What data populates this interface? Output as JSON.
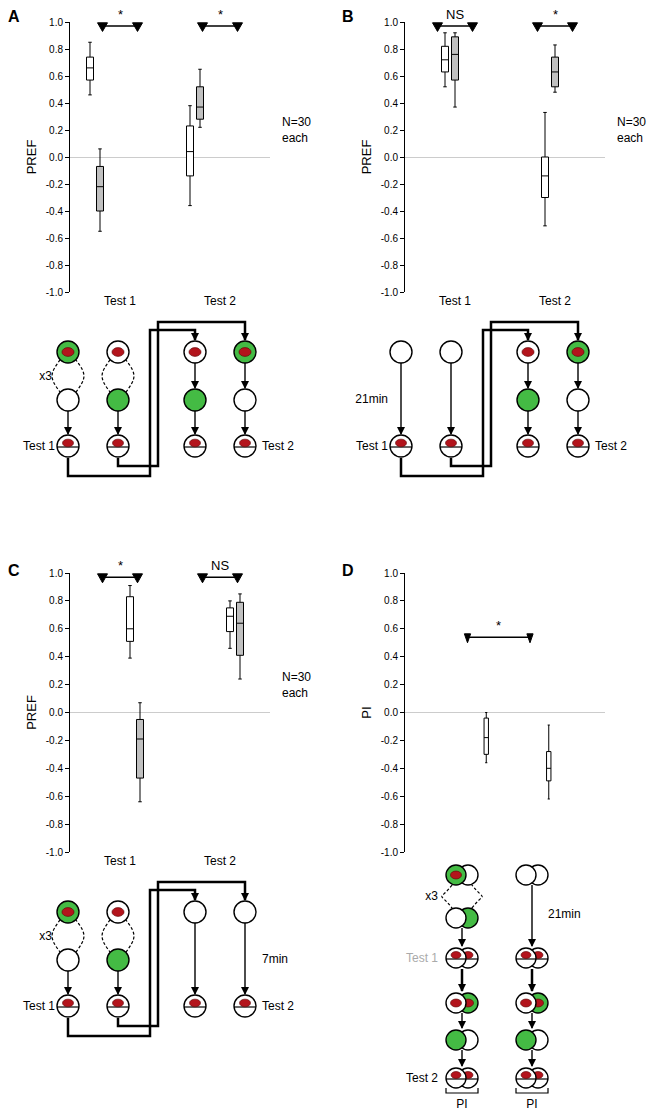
{
  "chart_data": [
    {
      "panel": "A",
      "type": "box",
      "y_label": "PREF",
      "categories": [
        "Test 1",
        "Test 2"
      ],
      "ylim": [
        -1,
        1
      ],
      "yticks": [
        {
          "value": -1,
          "label": "-1.0"
        },
        -0.8,
        -0.6,
        -0.4,
        -0.2,
        {
          "value": 0,
          "label": "0.0"
        },
        0.2,
        0.4,
        0.6,
        0.8,
        {
          "value": 1,
          "label": "1.0"
        }
      ],
      "series": [
        {
          "color": "#ffffff",
          "boxes": [
            {
              "min": 0.46,
              "q1": 0.57,
              "median": 0.66,
              "q3": 0.74,
              "max": 0.85
            },
            {
              "min": -0.36,
              "q1": -0.14,
              "median": 0.04,
              "q3": 0.23,
              "max": 0.38
            }
          ]
        },
        {
          "color": "#c0c0c0",
          "boxes": [
            {
              "min": -0.55,
              "q1": -0.4,
              "median": -0.22,
              "q3": -0.07,
              "max": 0.06
            },
            {
              "min": 0.22,
              "q1": 0.28,
              "median": 0.37,
              "q3": 0.52,
              "max": 0.65
            }
          ]
        }
      ],
      "significance": [
        {
          "categories": [
            0
          ],
          "text": "*"
        },
        {
          "categories": [
            1
          ],
          "text": "*"
        }
      ],
      "sample_size": [
        "N=30",
        "each"
      ]
    },
    {
      "panel": "B",
      "type": "box",
      "y_label": "PREF",
      "categories": [
        "Test 1",
        "Test 2"
      ],
      "ylim": [
        -1,
        1
      ],
      "yticks": [
        {
          "value": -1,
          "label": "-1.0"
        },
        -0.8,
        -0.6,
        -0.4,
        -0.2,
        {
          "value": 0,
          "label": "0.0"
        },
        0.2,
        0.4,
        0.6,
        0.8,
        {
          "value": 1,
          "label": "1.0"
        }
      ],
      "series": [
        {
          "color": "#ffffff",
          "boxes": [
            {
              "min": 0.52,
              "q1": 0.63,
              "median": 0.72,
              "q3": 0.82,
              "max": 0.92
            },
            {
              "min": -0.51,
              "q1": -0.3,
              "median": -0.14,
              "q3": 0.0,
              "max": 0.33
            }
          ]
        },
        {
          "color": "#c0c0c0",
          "boxes": [
            {
              "min": 0.37,
              "q1": 0.57,
              "median": 0.76,
              "q3": 0.89,
              "max": 0.92
            },
            {
              "min": 0.48,
              "q1": 0.52,
              "median": 0.63,
              "q3": 0.74,
              "max": 0.83
            }
          ]
        }
      ],
      "significance": [
        {
          "categories": [
            0
          ],
          "text": "NS"
        },
        {
          "categories": [
            1
          ],
          "text": "*"
        }
      ],
      "sample_size": [
        "N=30",
        "each"
      ]
    },
    {
      "panel": "C",
      "type": "box",
      "y_label": "PREF",
      "categories": [
        "Test 1",
        "Test 2"
      ],
      "ylim": [
        -1,
        1
      ],
      "yticks": [
        {
          "value": -1,
          "label": "-1.0"
        },
        -0.8,
        -0.6,
        -0.4,
        -0.2,
        {
          "value": 0,
          "label": "0.0"
        },
        0.2,
        0.4,
        0.6,
        0.8,
        {
          "value": 1,
          "label": "1.0"
        }
      ],
      "series": [
        {
          "color": "#ffffff",
          "boxes": [
            {
              "min": 0.39,
              "q1": 0.51,
              "median": 0.6,
              "q3": 0.83,
              "max": 0.91
            },
            {
              "min": 0.46,
              "q1": 0.58,
              "median": 0.69,
              "q3": 0.75,
              "max": 0.8
            }
          ]
        },
        {
          "color": "#c0c0c0",
          "boxes": [
            {
              "min": -0.64,
              "q1": -0.47,
              "median": -0.19,
              "q3": -0.05,
              "max": 0.07
            },
            {
              "min": 0.24,
              "q1": 0.41,
              "median": 0.64,
              "q3": 0.79,
              "max": 0.85
            }
          ]
        }
      ],
      "significance": [
        {
          "categories": [
            0
          ],
          "text": "*"
        },
        {
          "categories": [
            1
          ],
          "text": "NS"
        }
      ],
      "sample_size": [
        "N=30",
        "each"
      ]
    },
    {
      "panel": "D",
      "type": "box",
      "y_label": "PI",
      "categories": [
        null,
        null
      ],
      "tick_labels": "y",
      "ylim": [
        -1,
        1
      ],
      "yticks": [
        {
          "value": -1,
          "label": "-1.0"
        },
        -0.8,
        -0.6,
        -0.4,
        -0.2,
        {
          "value": 0,
          "label": "0.0"
        },
        0.2,
        0.4,
        0.6,
        0.8,
        {
          "value": 1,
          "label": "1.0"
        }
      ],
      "series": [
        {
          "color": "#ffffff",
          "boxes": [
            {
              "min": -0.36,
              "q1": -0.3,
              "median": -0.18,
              "q3": -0.04,
              "max": 0.0
            },
            {
              "min": -0.62,
              "q1": -0.49,
              "median": -0.4,
              "q3": -0.28,
              "max": -0.09
            }
          ]
        }
      ],
      "significance": [
        {
          "categories": [
            0,
            1
          ],
          "text": "*"
        }
      ]
    }
  ],
  "diagrams": [
    {
      "panel": "A",
      "repeat": "x3",
      "tests": [
        "Test 1",
        "Test 2"
      ]
    },
    {
      "panel": "B",
      "wait": "21min",
      "tests": [
        "Test 1",
        "Test 2"
      ]
    },
    {
      "panel": "C",
      "repeat": "x3",
      "wait": "7min",
      "tests": [
        "Test 1",
        "Test 2"
      ]
    },
    {
      "panel": "D",
      "repeat": "x3",
      "wait": "21min",
      "tests": [
        "Test 1",
        "Test 2"
      ],
      "index": "PI"
    }
  ]
}
